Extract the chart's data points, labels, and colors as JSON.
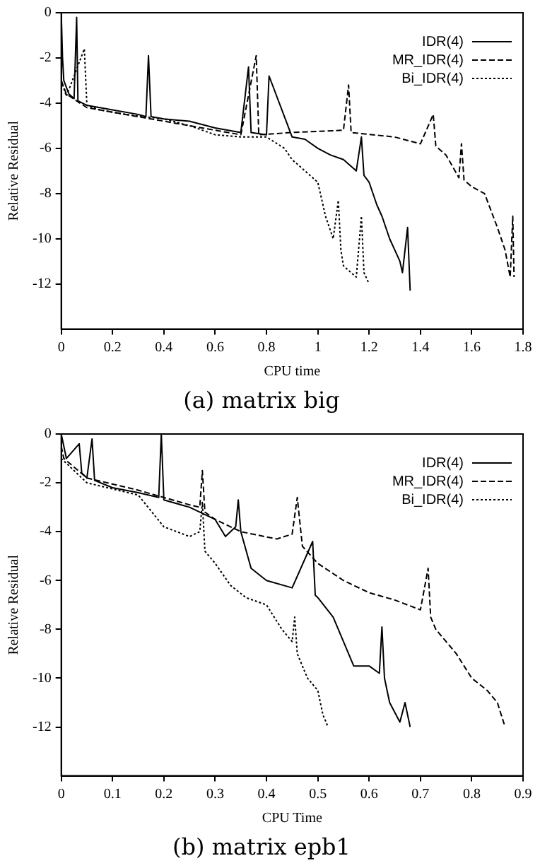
{
  "chart_data": [
    {
      "type": "line",
      "title": "(a) matrix big",
      "xlabel": "CPU time",
      "ylabel": "Relative Residual",
      "xlim": [
        0,
        1.8
      ],
      "xticks": [
        0,
        0.2,
        0.4,
        0.6,
        0.8,
        1,
        1.2,
        1.4,
        1.6,
        1.8
      ],
      "ylim": [
        -14,
        0
      ],
      "yticks": [
        -12,
        -10,
        -8,
        -6,
        -4,
        -2,
        0
      ],
      "grid": false,
      "legend": "top right",
      "marker": "none",
      "series": [
        {
          "name": "IDR(4)",
          "color": "#000000",
          "line_style": "solid",
          "x": [
            0,
            0.005,
            0.01,
            0.03,
            0.05,
            0.06,
            0.065,
            0.1,
            0.15,
            0.2,
            0.3,
            0.33,
            0.34,
            0.35,
            0.4,
            0.5,
            0.6,
            0.7,
            0.73,
            0.74,
            0.8,
            0.81,
            0.9,
            0.95,
            1.0,
            1.05,
            1.1,
            1.15,
            1.17,
            1.18,
            1.2,
            1.23,
            1.25,
            1.28,
            1.3,
            1.32,
            1.33,
            1.35,
            1.36
          ],
          "values": [
            0,
            -2,
            -3,
            -3.6,
            -3.8,
            -0.2,
            -3.9,
            -4.1,
            -4.2,
            -4.3,
            -4.5,
            -4.6,
            -1.9,
            -4.6,
            -4.7,
            -4.8,
            -5.1,
            -5.3,
            -2.4,
            -5.3,
            -5.4,
            -2.8,
            -5.5,
            -5.6,
            -6,
            -6.3,
            -6.5,
            -7,
            -5.5,
            -7.2,
            -7.5,
            -8.5,
            -9,
            -10,
            -10.5,
            -11,
            -11.5,
            -9.5,
            -12.3
          ]
        },
        {
          "name": "MR_IDR(4)",
          "color": "#000000",
          "line_style": "dashed",
          "x": [
            0,
            0.02,
            0.1,
            0.2,
            0.3,
            0.5,
            0.7,
            0.76,
            0.77,
            0.9,
            1.1,
            1.12,
            1.13,
            1.3,
            1.4,
            1.45,
            1.46,
            1.5,
            1.55,
            1.56,
            1.57,
            1.6,
            1.65,
            1.7,
            1.73,
            1.75,
            1.76,
            1.765
          ],
          "values": [
            -3,
            -3.6,
            -4.2,
            -4.4,
            -4.6,
            -5,
            -5.4,
            -1.9,
            -5.4,
            -5.3,
            -5.2,
            -3.2,
            -5.3,
            -5.5,
            -5.8,
            -4.5,
            -5.9,
            -6.3,
            -7.3,
            -5.8,
            -7.4,
            -7.7,
            -8,
            -9.5,
            -10.5,
            -11.7,
            -9,
            -11.7
          ]
        },
        {
          "name": "Bi_IDR(4)",
          "color": "#000000",
          "line_style": "dotted",
          "x": [
            0,
            0.02,
            0.09,
            0.1,
            0.15,
            0.25,
            0.4,
            0.5,
            0.6,
            0.7,
            0.8,
            0.87,
            0.9,
            0.95,
            1.0,
            1.03,
            1.06,
            1.08,
            1.09,
            1.1,
            1.15,
            1.17,
            1.18,
            1.2
          ],
          "values": [
            -3,
            -3.7,
            -1.6,
            -4.1,
            -4.3,
            -4.5,
            -4.7,
            -5,
            -5.4,
            -5.5,
            -5.5,
            -6,
            -6.5,
            -7,
            -7.5,
            -9,
            -10,
            -8.3,
            -10.5,
            -11.2,
            -11.7,
            -9,
            -11.5,
            -12
          ]
        }
      ]
    },
    {
      "type": "line",
      "title": "(b) matrix epb1",
      "xlabel": "CPU Time",
      "ylabel": "Relative Residual",
      "xlim": [
        0,
        0.9
      ],
      "xticks": [
        0,
        0.1,
        0.2,
        0.3,
        0.4,
        0.5,
        0.6,
        0.7,
        0.8,
        0.9
      ],
      "ylim": [
        -14,
        0
      ],
      "yticks": [
        -12,
        -10,
        -8,
        -6,
        -4,
        -2,
        0
      ],
      "grid": false,
      "legend": "top right",
      "marker": "none",
      "series": [
        {
          "name": "IDR(4)",
          "color": "#000000",
          "line_style": "solid",
          "x": [
            0,
            0.01,
            0.035,
            0.04,
            0.05,
            0.06,
            0.065,
            0.1,
            0.15,
            0.19,
            0.195,
            0.2,
            0.25,
            0.3,
            0.32,
            0.34,
            0.345,
            0.35,
            0.37,
            0.4,
            0.45,
            0.49,
            0.495,
            0.5,
            0.53,
            0.55,
            0.57,
            0.6,
            0.62,
            0.625,
            0.63,
            0.64,
            0.66,
            0.67,
            0.68
          ],
          "values": [
            0,
            -1,
            -0.4,
            -1.6,
            -1.8,
            -0.2,
            -1.9,
            -2.2,
            -2.4,
            -2.6,
            0,
            -2.7,
            -3,
            -3.5,
            -4.2,
            -3.8,
            -2.7,
            -4,
            -5.5,
            -6,
            -6.3,
            -4.4,
            -6.6,
            -6.7,
            -7.5,
            -8.5,
            -9.5,
            -9.5,
            -9.8,
            -7.9,
            -10,
            -11,
            -11.8,
            -11,
            -12
          ]
        },
        {
          "name": "MR_IDR(4)",
          "color": "#000000",
          "line_style": "dashed",
          "x": [
            0,
            0.005,
            0.05,
            0.15,
            0.25,
            0.27,
            0.275,
            0.28,
            0.3,
            0.35,
            0.42,
            0.45,
            0.46,
            0.47,
            0.5,
            0.55,
            0.6,
            0.65,
            0.7,
            0.715,
            0.72,
            0.73,
            0.77,
            0.8,
            0.83,
            0.85,
            0.865
          ],
          "values": [
            -0.5,
            -1,
            -1.8,
            -2.3,
            -2.9,
            -3,
            -1.5,
            -3.2,
            -3.5,
            -4,
            -4.3,
            -4.1,
            -2.6,
            -4.6,
            -5.3,
            -6,
            -6.5,
            -6.8,
            -7.2,
            -5.5,
            -7.5,
            -8,
            -9,
            -10,
            -10.5,
            -11,
            -12
          ]
        },
        {
          "name": "Bi_IDR(4)",
          "color": "#000000",
          "line_style": "dotted",
          "x": [
            0,
            0.05,
            0.15,
            0.2,
            0.25,
            0.27,
            0.275,
            0.28,
            0.3,
            0.33,
            0.36,
            0.4,
            0.43,
            0.45,
            0.455,
            0.46,
            0.48,
            0.5,
            0.51,
            0.52
          ],
          "values": [
            -1,
            -2,
            -2.5,
            -3.8,
            -4.2,
            -4,
            -2.8,
            -4.8,
            -5.3,
            -6.2,
            -6.7,
            -7,
            -8,
            -8.5,
            -7.5,
            -9,
            -10,
            -10.5,
            -11.5,
            -12
          ]
        }
      ]
    }
  ]
}
